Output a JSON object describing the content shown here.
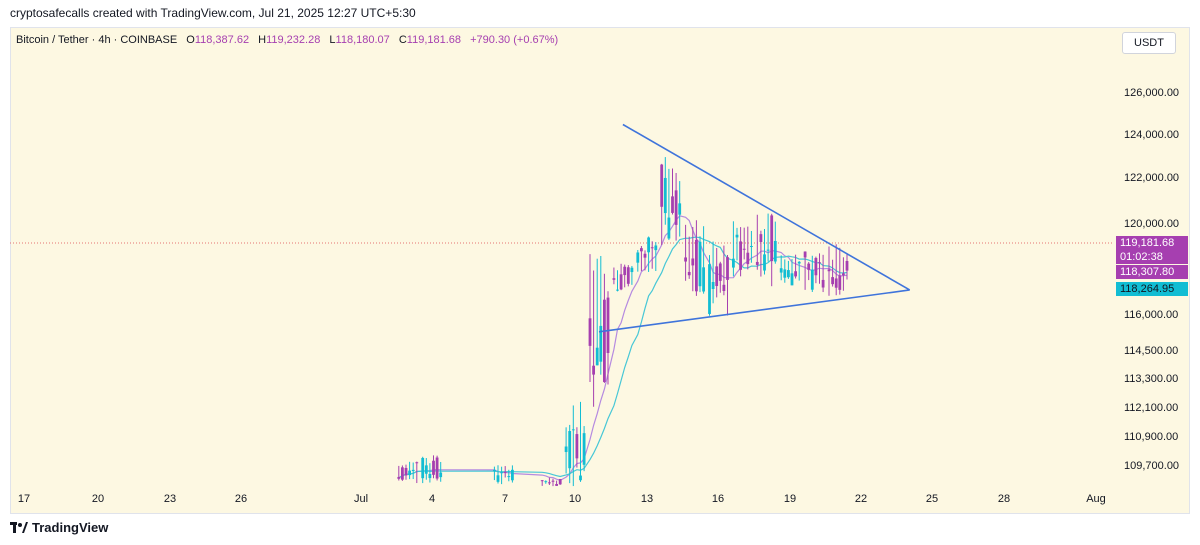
{
  "header": {
    "credit": "cryptosafecalls created with TradingView.com, Jul 21, 2025 12:27 UTC+5:30"
  },
  "legend": {
    "symbol": "Bitcoin / Tether · 4h · COINBASE",
    "open_label": "O",
    "open": "118,387.62",
    "high_label": "H",
    "high": "119,232.28",
    "low_label": "L",
    "low": "118,180.07",
    "close_label": "C",
    "close": "119,181.68",
    "change": "+790.30 (+0.67%)"
  },
  "currency_button": "USDT",
  "price_tags": {
    "last_price": "119,181.68",
    "countdown": "01:02:38",
    "ma1": "118,307.80",
    "ma2": "118,264.95"
  },
  "footer": {
    "brand": "TradingView"
  },
  "colors": {
    "up": "#a63fb0",
    "down": "#12bdd3",
    "trendline": "#3f74db",
    "ma_purple": "#b58ae0",
    "ma_cyan": "#46c7d6",
    "background": "#fdf8e2"
  },
  "chart_data": {
    "type": "candlestick",
    "title": "Bitcoin / Tether · 4h · COINBASE",
    "y_ticks": [
      "126,000.00",
      "124,000.00",
      "122,000.00",
      "120,000.00",
      "116,000.00",
      "114,500.00",
      "113,300.00",
      "112,100.00",
      "110,900.00",
      "109,700.00"
    ],
    "x_ticks": [
      "17",
      "20",
      "23",
      "26",
      "Jul",
      "4",
      "7",
      "10",
      "13",
      "16",
      "19",
      "22",
      "25",
      "28",
      "Aug"
    ],
    "last_price": 119181.68,
    "candles_by_day": [
      {
        "day": "Jul 3",
        "high": 109900,
        "low": 108900
      },
      {
        "day": "Jul 4",
        "high": 110300,
        "low": 108900
      },
      {
        "day": "Jul 7",
        "high": 109800,
        "low": 108900
      },
      {
        "day": "Jul 9",
        "high": 109200,
        "low": 108800
      },
      {
        "day": "Jul 10",
        "high": 112400,
        "low": 108800
      },
      {
        "day": "Jul 11",
        "high": 118800,
        "low": 112000
      },
      {
        "day": "Jul 12",
        "high": 118400,
        "low": 117000
      },
      {
        "day": "Jul 13",
        "high": 119500,
        "low": 117600
      },
      {
        "day": "Jul 14",
        "high": 123200,
        "low": 119000
      },
      {
        "day": "Jul 15",
        "high": 120200,
        "low": 116400
      },
      {
        "day": "Jul 16",
        "high": 119600,
        "low": 115800
      },
      {
        "day": "Jul 17",
        "high": 120500,
        "low": 117400
      },
      {
        "day": "Jul 18",
        "high": 120900,
        "low": 117200
      },
      {
        "day": "Jul 19",
        "high": 118700,
        "low": 117300
      },
      {
        "day": "Jul 20",
        "high": 118800,
        "low": 117000
      },
      {
        "day": "Jul 21",
        "high": 119232.28,
        "low": 116800
      }
    ],
    "trendlines": [
      {
        "name": "upper",
        "from": [
          "Jul 12",
          124500
        ],
        "to": [
          "Jul 24",
          117100
        ]
      },
      {
        "name": "lower",
        "from": [
          "Jul 11",
          115300
        ],
        "to": [
          "Jul 24",
          117100
        ]
      }
    ]
  }
}
